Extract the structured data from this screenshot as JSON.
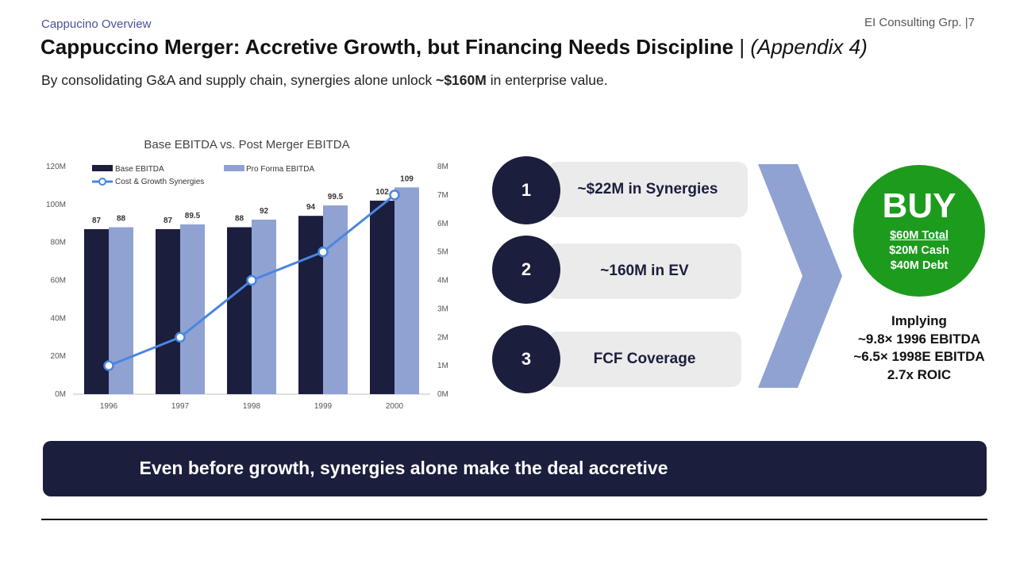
{
  "header": {
    "section": "Cappucino Overview",
    "firm": "EI Consulting Grp. |7",
    "title_main": "Cappuccino Merger: Accretive Growth, but Financing Needs Discipline",
    "title_sep": "|",
    "title_appendix": "(Appendix 4)",
    "subtitle_pre": "By consolidating G&A and supply chain, synergies alone unlock ",
    "subtitle_bold": "~$160M",
    "subtitle_post": " in enterprise value."
  },
  "chart_data": {
    "type": "bar",
    "title": "Base EBITDA vs. Post Merger EBITDA",
    "categories": [
      "1996",
      "1997",
      "1998",
      "1999",
      "2000"
    ],
    "series": [
      {
        "name": "Base EBITDA",
        "type": "bar",
        "axis": "left",
        "color": "#1b1e3d",
        "values": [
          87,
          87,
          88,
          94,
          102
        ]
      },
      {
        "name": "Pro Forma EBITDA",
        "type": "bar",
        "axis": "left",
        "color": "#8fa2d2",
        "values": [
          88,
          89.5,
          92,
          99.5,
          109
        ]
      },
      {
        "name": "Cost & Growth Synergies",
        "type": "line",
        "axis": "right",
        "color": "#4a86e0",
        "values": [
          1,
          2,
          4,
          5,
          7
        ]
      }
    ],
    "ylim": [
      0,
      120
    ],
    "y2lim": [
      0,
      8
    ],
    "yticks": [
      "0M",
      "20M",
      "40M",
      "60M",
      "80M",
      "100M",
      "120M"
    ],
    "y2ticks": [
      "0M",
      "1M",
      "2M",
      "3M",
      "4M",
      "5M",
      "6M",
      "7M",
      "8M"
    ],
    "legend": "top-left",
    "grid": false
  },
  "points": [
    {
      "num": "1",
      "label": "~$22M in Synergies"
    },
    {
      "num": "2",
      "label": "~160M in EV"
    },
    {
      "num": "3",
      "label": "FCF Coverage"
    }
  ],
  "recommendation": {
    "verdict": "BUY",
    "total": "$60M Total",
    "cash": "$20M Cash",
    "debt": "$40M Debt",
    "implying": [
      "Implying",
      "~9.8× 1996 EBITDA",
      "~6.5× 1998E EBITDA",
      "2.7x ROIC"
    ]
  },
  "banner": "Even before growth, synergies alone make the deal accretive",
  "colors": {
    "navy": "#1b1e3d",
    "periwinkle": "#8fa2d2",
    "line_blue": "#4a86e0",
    "buy_green": "#1d9b1d"
  }
}
